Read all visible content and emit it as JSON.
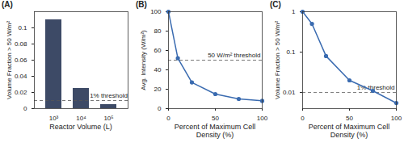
{
  "chart_data": [
    {
      "type": "bar",
      "title": "(A)",
      "x_label": "Reactor Volume (L)",
      "y_label": "Volume Fraction > 50 W/m²",
      "categories": [
        "10³",
        "10⁴",
        "10⁵"
      ],
      "values": [
        0.11,
        0.025,
        0.005
      ],
      "color": "#3d4a66",
      "ylim": [
        0,
        0.12
      ],
      "yticks": [
        0,
        0.02,
        0.04,
        0.06,
        0.08,
        0.1
      ],
      "reference_line": {
        "value": 0.01,
        "label": "1% threshold",
        "line_style": "dashed"
      }
    },
    {
      "type": "line",
      "title": "(B)",
      "x_label": "Percent of Maximum Cell Density (%)",
      "y_label": "Avg. Intensity (W/m²)",
      "x": [
        0,
        10,
        25,
        50,
        75,
        100
      ],
      "values": [
        100,
        52,
        27,
        15,
        10,
        8
      ],
      "color": "#3a6bb0",
      "marker": "circle",
      "xlim": [
        0,
        100
      ],
      "xticks": [
        0,
        50,
        100
      ],
      "ylim": [
        0,
        100
      ],
      "yticks": [
        0,
        20,
        40,
        60,
        80,
        100
      ],
      "reference_line": {
        "value": 50,
        "label": "50 W/m² threshold",
        "line_style": "dashed"
      }
    },
    {
      "type": "line",
      "title": "(C)",
      "x_label": "Percent of Maximum Cell Density (%)",
      "y_label": "Volume Fraction > 50 W/m²",
      "x": [
        0,
        10,
        25,
        50,
        75,
        100
      ],
      "values": [
        1,
        0.5,
        0.08,
        0.02,
        0.011,
        0.0055
      ],
      "color": "#3a6bb0",
      "marker": "circle",
      "log": "y",
      "xlim": [
        0,
        100
      ],
      "xticks": [
        0,
        50,
        100
      ],
      "ylim": [
        0.004,
        1
      ],
      "yticks": [
        0.01,
        0.1,
        1
      ],
      "reference_line": {
        "value": 0.01,
        "label": "1% threshold",
        "line_style": "dashed"
      }
    }
  ]
}
